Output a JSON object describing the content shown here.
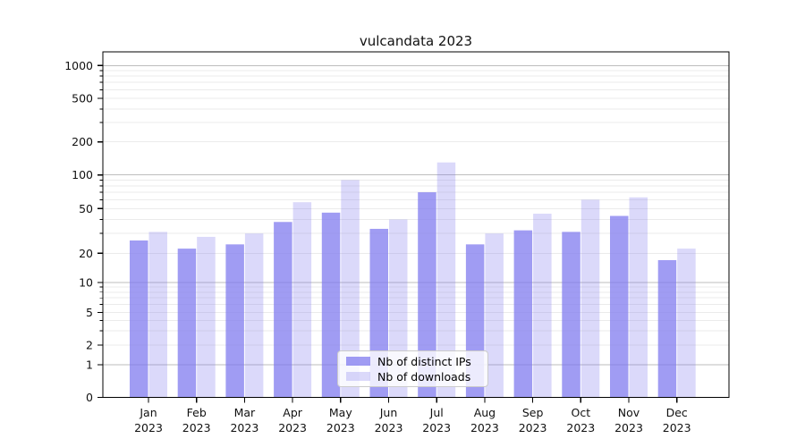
{
  "title": "vulcandata 2023",
  "chart_data": {
    "type": "bar",
    "title": "vulcandata 2023",
    "yscale": "symlog",
    "grid": true,
    "legend_position": "lower center",
    "xlabel": "",
    "ylabel": "",
    "categories": [
      "Jan 2023",
      "Feb 2023",
      "Mar 2023",
      "Apr 2023",
      "May 2023",
      "Jun 2023",
      "Jul 2023",
      "Aug 2023",
      "Sep 2023",
      "Oct 2023",
      "Nov 2023",
      "Dec 2023"
    ],
    "yticks": [
      0,
      1,
      2,
      5,
      10,
      20,
      50,
      100,
      200,
      500,
      1000
    ],
    "ylim": [
      0,
      1400
    ],
    "base_color": "#7C76EE",
    "grid_major_color": "#bdbdbd",
    "grid_minor_color": "#ebebeb",
    "series": [
      {
        "name": "Nb of distinct IPs",
        "color": "#7C76EE",
        "alpha": 0.72,
        "values": [
          26,
          22,
          24,
          38,
          46,
          33,
          70,
          24,
          32,
          31,
          43,
          17
        ]
      },
      {
        "name": "Nb of downloads",
        "color": "#7C76EE",
        "alpha": 0.28,
        "values": [
          31,
          28,
          30,
          57,
          90,
          40,
          130,
          30,
          45,
          60,
          63,
          22
        ]
      }
    ]
  }
}
